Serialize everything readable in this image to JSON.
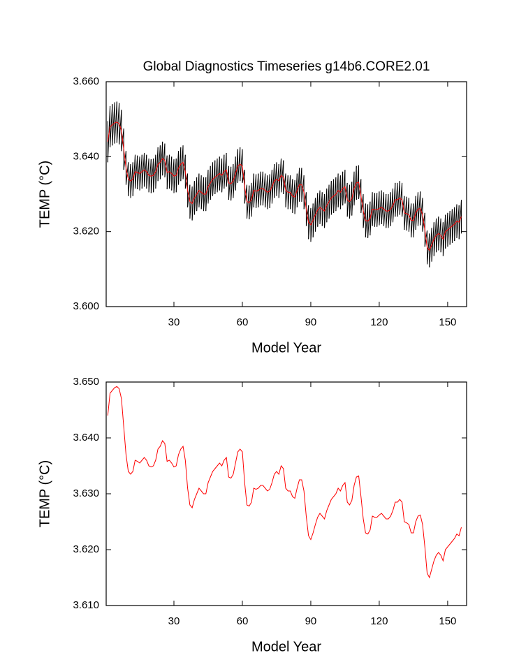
{
  "chart_data": [
    {
      "type": "line",
      "title": "Global Diagnostics Timeseries g14b6.CORE2.01",
      "x_label": "Model Year",
      "y_label": "TEMP (°C)",
      "xlim": [
        0.3,
        158.3
      ],
      "xticks": [
        30,
        60,
        90,
        120,
        150
      ],
      "ylim": [
        3.6,
        3.66
      ],
      "yticks": [
        {
          "value": 3.6,
          "label": "3.600"
        },
        {
          "value": 3.62,
          "label": "3.620"
        },
        {
          "value": 3.64,
          "label": "3.640"
        },
        {
          "value": 3.66,
          "label": "3.660"
        }
      ],
      "x": [
        1,
        2,
        3,
        4,
        5,
        6,
        7,
        8,
        9,
        10,
        11,
        12,
        13,
        14,
        15,
        16,
        17,
        18,
        19,
        20,
        21,
        22,
        23,
        24,
        25,
        26,
        27,
        28,
        29,
        30,
        31,
        32,
        33,
        34,
        35,
        36,
        37,
        38,
        39,
        40,
        41,
        42,
        43,
        44,
        45,
        46,
        47,
        48,
        49,
        50,
        51,
        52,
        53,
        54,
        55,
        56,
        57,
        58,
        59,
        60,
        61,
        62,
        63,
        64,
        65,
        66,
        67,
        68,
        69,
        70,
        71,
        72,
        73,
        74,
        75,
        76,
        77,
        78,
        79,
        80,
        81,
        82,
        83,
        84,
        85,
        86,
        87,
        88,
        89,
        90,
        91,
        92,
        93,
        94,
        95,
        96,
        97,
        98,
        99,
        100,
        101,
        102,
        103,
        104,
        105,
        106,
        107,
        108,
        109,
        110,
        111,
        112,
        113,
        114,
        115,
        116,
        117,
        118,
        119,
        120,
        121,
        122,
        123,
        124,
        125,
        126,
        127,
        128,
        129,
        130,
        131,
        132,
        133,
        134,
        135,
        136,
        137,
        138,
        139,
        140,
        141,
        142,
        143,
        144,
        145,
        146,
        147,
        148,
        149,
        150,
        151,
        152,
        153,
        154,
        155,
        156
      ],
      "series": [
        {
          "color": "#000000",
          "high": [
            3.6495,
            3.6535,
            3.654,
            3.6545,
            3.6547,
            3.6543,
            3.6525,
            3.6475,
            3.6415,
            3.6385,
            3.638,
            3.6385,
            3.6405,
            3.6403,
            3.64,
            3.6405,
            3.641,
            3.6405,
            3.6395,
            3.6393,
            3.6395,
            3.6405,
            3.6425,
            3.643,
            3.644,
            3.6435,
            3.6403,
            3.6405,
            3.64,
            3.6393,
            3.6395,
            3.6415,
            3.6425,
            3.643,
            3.6405,
            3.6355,
            3.6325,
            3.632,
            3.6335,
            3.6345,
            3.6355,
            3.635,
            3.6345,
            3.6345,
            3.6365,
            3.6375,
            3.6385,
            3.639,
            3.6395,
            3.64,
            3.6395,
            3.6405,
            3.641,
            3.6375,
            3.6373,
            3.638,
            3.64,
            3.642,
            3.6425,
            3.642,
            3.6365,
            3.6325,
            3.6323,
            3.633,
            3.6355,
            3.6353,
            3.6355,
            3.636,
            3.636,
            3.6355,
            3.635,
            3.6353,
            3.6365,
            3.638,
            3.6385,
            3.638,
            3.6395,
            3.639,
            3.6355,
            3.635,
            3.635,
            3.634,
            3.6337,
            3.6355,
            3.637,
            3.637,
            3.635,
            3.6305,
            3.627,
            3.6263,
            3.6275,
            3.629,
            3.6303,
            3.631,
            3.6305,
            3.63,
            3.6315,
            3.6325,
            3.6335,
            3.634,
            3.6345,
            3.6355,
            3.635,
            3.636,
            3.6365,
            3.633,
            3.6325,
            3.6333,
            3.636,
            3.6375,
            3.6377,
            3.634,
            3.63,
            3.6275,
            3.6273,
            3.628,
            3.6305,
            3.6303,
            3.6303,
            3.6307,
            3.631,
            3.6305,
            3.63,
            3.63,
            3.6305,
            3.6315,
            3.633,
            3.633,
            3.6335,
            3.633,
            3.6295,
            3.6293,
            3.629,
            3.6275,
            3.6275,
            3.6295,
            3.6305,
            3.6307,
            3.629,
            3.625,
            3.6203,
            3.6195,
            3.621,
            3.6225,
            3.6235,
            3.624,
            3.6235,
            3.6225,
            3.6245,
            3.625,
            3.6255,
            3.626,
            3.6265,
            3.6273,
            3.627,
            3.6285
          ],
          "low": [
            3.6385,
            3.6425,
            3.643,
            3.6435,
            3.6437,
            3.6433,
            3.6415,
            3.6365,
            3.6325,
            3.6295,
            3.629,
            3.6295,
            3.6315,
            3.6313,
            3.631,
            3.6315,
            3.632,
            3.6315,
            3.6305,
            3.6303,
            3.6305,
            3.6315,
            3.6335,
            3.634,
            3.635,
            3.6345,
            3.6313,
            3.6315,
            3.631,
            3.6303,
            3.6305,
            3.6325,
            3.6335,
            3.634,
            3.6315,
            3.6265,
            3.6235,
            3.623,
            3.6245,
            3.6255,
            3.6265,
            3.626,
            3.6255,
            3.6255,
            3.6275,
            3.6285,
            3.6295,
            3.63,
            3.6305,
            3.631,
            3.6305,
            3.6315,
            3.632,
            3.6285,
            3.6283,
            3.629,
            3.631,
            3.633,
            3.6335,
            3.633,
            3.6275,
            3.6235,
            3.6233,
            3.624,
            3.6265,
            3.6263,
            3.6265,
            3.627,
            3.627,
            3.6265,
            3.626,
            3.6263,
            3.6275,
            3.629,
            3.6295,
            3.629,
            3.6305,
            3.63,
            3.6265,
            3.626,
            3.626,
            3.625,
            3.6247,
            3.6265,
            3.628,
            3.628,
            3.626,
            3.6215,
            3.618,
            3.6173,
            3.6185,
            3.62,
            3.6213,
            3.622,
            3.6215,
            3.621,
            3.6225,
            3.6235,
            3.6245,
            3.625,
            3.6255,
            3.6265,
            3.626,
            3.627,
            3.6275,
            3.624,
            3.6235,
            3.6243,
            3.627,
            3.6285,
            3.6287,
            3.625,
            3.621,
            3.6185,
            3.6183,
            3.619,
            3.6215,
            3.6213,
            3.6213,
            3.6217,
            3.622,
            3.6215,
            3.621,
            3.621,
            3.6215,
            3.6225,
            3.624,
            3.624,
            3.6245,
            3.624,
            3.6205,
            3.6203,
            3.62,
            3.6185,
            3.6185,
            3.6205,
            3.6215,
            3.6217,
            3.62,
            3.616,
            3.6113,
            3.6105,
            3.612,
            3.6135,
            3.6145,
            3.615,
            3.6145,
            3.6135,
            3.6155,
            3.616,
            3.6165,
            3.617,
            3.6175,
            3.6183,
            3.618,
            3.6195
          ]
        },
        {
          "color": "#ff0000",
          "values": [
            3.644,
            3.648,
            3.6485,
            3.649,
            3.6492,
            3.6488,
            3.647,
            3.642,
            3.637,
            3.634,
            3.6335,
            3.634,
            3.636,
            3.6358,
            3.6355,
            3.636,
            3.6365,
            3.636,
            3.635,
            3.6348,
            3.635,
            3.636,
            3.638,
            3.6385,
            3.6395,
            3.639,
            3.6358,
            3.636,
            3.6355,
            3.6348,
            3.635,
            3.637,
            3.638,
            3.6385,
            3.636,
            3.631,
            3.628,
            3.6275,
            3.629,
            3.63,
            3.631,
            3.6305,
            3.63,
            3.63,
            3.632,
            3.633,
            3.634,
            3.6345,
            3.635,
            3.6355,
            3.635,
            3.636,
            3.6365,
            3.633,
            3.6328,
            3.6335,
            3.6355,
            3.6375,
            3.638,
            3.6375,
            3.632,
            3.628,
            3.6278,
            3.6285,
            3.631,
            3.6308,
            3.631,
            3.6315,
            3.6315,
            3.631,
            3.6305,
            3.6308,
            3.632,
            3.6335,
            3.634,
            3.6335,
            3.635,
            3.6345,
            3.631,
            3.6305,
            3.6305,
            3.6295,
            3.6292,
            3.631,
            3.6325,
            3.6325,
            3.6305,
            3.626,
            3.6225,
            3.6218,
            3.623,
            3.6245,
            3.6258,
            3.6265,
            3.626,
            3.6255,
            3.627,
            3.628,
            3.629,
            3.6295,
            3.63,
            3.631,
            3.6305,
            3.6315,
            3.632,
            3.6285,
            3.628,
            3.6288,
            3.6315,
            3.633,
            3.6332,
            3.6295,
            3.6255,
            3.623,
            3.6228,
            3.6235,
            3.626,
            3.6258,
            3.6258,
            3.6262,
            3.6265,
            3.626,
            3.6255,
            3.6255,
            3.626,
            3.627,
            3.6285,
            3.6285,
            3.629,
            3.6285,
            3.625,
            3.6248,
            3.6245,
            3.623,
            3.623,
            3.625,
            3.626,
            3.6262,
            3.6245,
            3.6205,
            3.6158,
            3.615,
            3.6165,
            3.618,
            3.619,
            3.6195,
            3.619,
            3.618,
            3.62,
            3.6205,
            3.621,
            3.6215,
            3.622,
            3.6228,
            3.6225,
            3.624
          ]
        }
      ]
    },
    {
      "type": "line",
      "x_label": "Model Year",
      "y_label": "TEMP (°C)",
      "xlim": [
        0.3,
        158.3
      ],
      "xticks": [
        30,
        60,
        90,
        120,
        150
      ],
      "ylim": [
        3.61,
        3.65
      ],
      "yticks": [
        {
          "value": 3.61,
          "label": "3.610"
        },
        {
          "value": 3.62,
          "label": "3.620"
        },
        {
          "value": 3.63,
          "label": "3.630"
        },
        {
          "value": 3.64,
          "label": "3.640"
        },
        {
          "value": 3.65,
          "label": "3.650"
        }
      ],
      "x": [
        1,
        2,
        3,
        4,
        5,
        6,
        7,
        8,
        9,
        10,
        11,
        12,
        13,
        14,
        15,
        16,
        17,
        18,
        19,
        20,
        21,
        22,
        23,
        24,
        25,
        26,
        27,
        28,
        29,
        30,
        31,
        32,
        33,
        34,
        35,
        36,
        37,
        38,
        39,
        40,
        41,
        42,
        43,
        44,
        45,
        46,
        47,
        48,
        49,
        50,
        51,
        52,
        53,
        54,
        55,
        56,
        57,
        58,
        59,
        60,
        61,
        62,
        63,
        64,
        65,
        66,
        67,
        68,
        69,
        70,
        71,
        72,
        73,
        74,
        75,
        76,
        77,
        78,
        79,
        80,
        81,
        82,
        83,
        84,
        85,
        86,
        87,
        88,
        89,
        90,
        91,
        92,
        93,
        94,
        95,
        96,
        97,
        98,
        99,
        100,
        101,
        102,
        103,
        104,
        105,
        106,
        107,
        108,
        109,
        110,
        111,
        112,
        113,
        114,
        115,
        116,
        117,
        118,
        119,
        120,
        121,
        122,
        123,
        124,
        125,
        126,
        127,
        128,
        129,
        130,
        131,
        132,
        133,
        134,
        135,
        136,
        137,
        138,
        139,
        140,
        141,
        142,
        143,
        144,
        145,
        146,
        147,
        148,
        149,
        150,
        151,
        152,
        153,
        154,
        155,
        156
      ],
      "series": [
        {
          "color": "#ff0000",
          "values": [
            3.644,
            3.648,
            3.6485,
            3.649,
            3.6492,
            3.6488,
            3.647,
            3.642,
            3.637,
            3.634,
            3.6335,
            3.634,
            3.636,
            3.6358,
            3.6355,
            3.636,
            3.6365,
            3.636,
            3.635,
            3.6348,
            3.635,
            3.636,
            3.638,
            3.6385,
            3.6395,
            3.639,
            3.6358,
            3.636,
            3.6355,
            3.6348,
            3.635,
            3.637,
            3.638,
            3.6385,
            3.636,
            3.631,
            3.628,
            3.6275,
            3.629,
            3.63,
            3.631,
            3.6305,
            3.63,
            3.63,
            3.632,
            3.633,
            3.634,
            3.6345,
            3.635,
            3.6355,
            3.635,
            3.636,
            3.6365,
            3.633,
            3.6328,
            3.6335,
            3.6355,
            3.6375,
            3.638,
            3.6375,
            3.632,
            3.628,
            3.6278,
            3.6285,
            3.631,
            3.6308,
            3.631,
            3.6315,
            3.6315,
            3.631,
            3.6305,
            3.6308,
            3.632,
            3.6335,
            3.634,
            3.6335,
            3.635,
            3.6345,
            3.631,
            3.6305,
            3.6305,
            3.6295,
            3.6292,
            3.631,
            3.6325,
            3.6325,
            3.6305,
            3.626,
            3.6225,
            3.6218,
            3.623,
            3.6245,
            3.6258,
            3.6265,
            3.626,
            3.6255,
            3.627,
            3.628,
            3.629,
            3.6295,
            3.63,
            3.631,
            3.6305,
            3.6315,
            3.632,
            3.6285,
            3.628,
            3.6288,
            3.6315,
            3.633,
            3.6332,
            3.6295,
            3.6255,
            3.623,
            3.6228,
            3.6235,
            3.626,
            3.6258,
            3.6258,
            3.6262,
            3.6265,
            3.626,
            3.6255,
            3.6255,
            3.626,
            3.627,
            3.6285,
            3.6285,
            3.629,
            3.6285,
            3.625,
            3.6248,
            3.6245,
            3.623,
            3.623,
            3.625,
            3.626,
            3.6262,
            3.6245,
            3.6205,
            3.6158,
            3.615,
            3.6165,
            3.618,
            3.619,
            3.6195,
            3.619,
            3.618,
            3.62,
            3.6205,
            3.621,
            3.6215,
            3.622,
            3.6228,
            3.6225,
            3.624
          ]
        }
      ]
    }
  ]
}
